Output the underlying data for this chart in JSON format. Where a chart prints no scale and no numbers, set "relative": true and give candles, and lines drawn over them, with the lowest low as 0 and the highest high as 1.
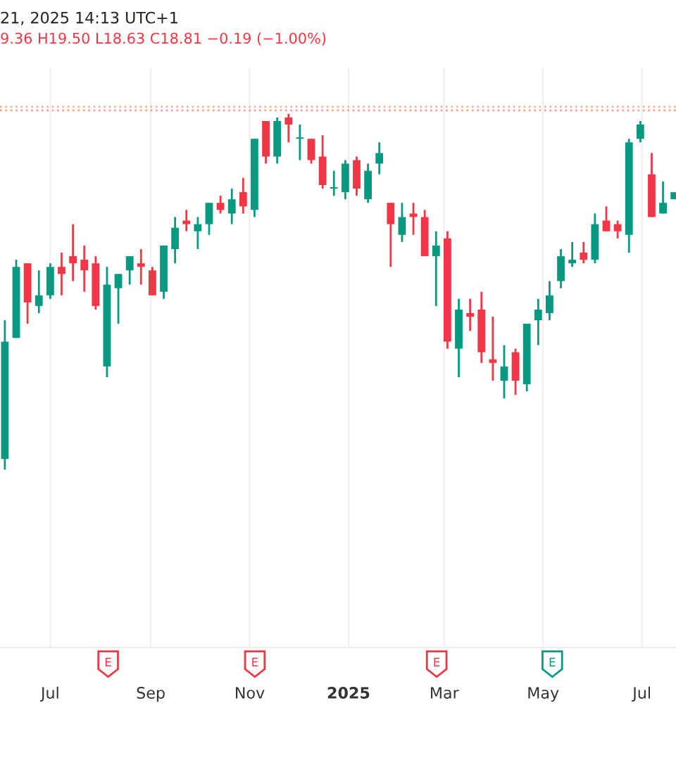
{
  "chart_data": {
    "type": "candlestick",
    "title": "21, 2025 14:13 UTC+1",
    "subtitle": "9.36 H19.50 L18.63 C18.81 −0.19 (−1.00%)",
    "relative": true,
    "grid": "x",
    "x": [
      "2024-06-03",
      "2024-06-10",
      "2024-06-17",
      "2024-06-24",
      "2024-07-01",
      "2024-07-08",
      "2024-07-15",
      "2024-07-22",
      "2024-07-29",
      "2024-08-05",
      "2024-08-12",
      "2024-08-19",
      "2024-08-26",
      "2024-09-02",
      "2024-09-09",
      "2024-09-16",
      "2024-09-23",
      "2024-09-30",
      "2024-10-07",
      "2024-10-14",
      "2024-10-21",
      "2024-10-28",
      "2024-11-04",
      "2024-11-11",
      "2024-11-18",
      "2024-11-25",
      "2024-12-02",
      "2024-12-09",
      "2024-12-16",
      "2024-12-23",
      "2024-12-30",
      "2025-01-06",
      "2025-01-13",
      "2025-01-20",
      "2025-01-27",
      "2025-02-03",
      "2025-02-10",
      "2025-02-17",
      "2025-02-24",
      "2025-03-03",
      "2025-03-10",
      "2025-03-17",
      "2025-03-24",
      "2025-03-31",
      "2025-04-07",
      "2025-04-14",
      "2025-04-21",
      "2025-04-28",
      "2025-05-05",
      "2025-05-12",
      "2025-05-19",
      "2025-05-26",
      "2025-06-02",
      "2025-06-09",
      "2025-06-16",
      "2025-06-23",
      "2025-06-30",
      "2025-07-07",
      "2025-07-14",
      "2025-07-21"
    ],
    "ohlc": [
      [
        0.03,
        0.42,
        0,
        0.36
      ],
      [
        0.37,
        0.59,
        0.37,
        0.57
      ],
      [
        0.58,
        0.58,
        0.41,
        0.47
      ],
      [
        0.46,
        0.56,
        0.44,
        0.49
      ],
      [
        0.49,
        0.58,
        0.48,
        0.57
      ],
      [
        0.57,
        0.61,
        0.49,
        0.55
      ],
      [
        0.6,
        0.69,
        0.53,
        0.58
      ],
      [
        0.59,
        0.63,
        0.5,
        0.56
      ],
      [
        0.58,
        0.6,
        0.45,
        0.46
      ],
      [
        0.29,
        0.57,
        0.26,
        0.52
      ],
      [
        0.51,
        0.55,
        0.41,
        0.55
      ],
      [
        0.56,
        0.6,
        0.52,
        0.6
      ],
      [
        0.58,
        0.62,
        0.52,
        0.57
      ],
      [
        0.56,
        0.57,
        0.49,
        0.49
      ],
      [
        0.5,
        0.63,
        0.48,
        0.63
      ],
      [
        0.62,
        0.71,
        0.58,
        0.68
      ],
      [
        0.7,
        0.73,
        0.67,
        0.69
      ],
      [
        0.67,
        0.71,
        0.62,
        0.69
      ],
      [
        0.69,
        0.75,
        0.66,
        0.75
      ],
      [
        0.75,
        0.77,
        0.72,
        0.73
      ],
      [
        0.72,
        0.79,
        0.69,
        0.76
      ],
      [
        0.78,
        0.82,
        0.72,
        0.74
      ],
      [
        0.73,
        0.93,
        0.71,
        0.93
      ],
      [
        0.98,
        0.98,
        0.86,
        0.88
      ],
      [
        0.88,
        0.99,
        0.86,
        0.98
      ],
      [
        0.99,
        1,
        0.92,
        0.97
      ],
      [
        0.93,
        0.97,
        0.87,
        0.93
      ],
      [
        0.93,
        0.93,
        0.86,
        0.87
      ],
      [
        0.88,
        0.94,
        0.79,
        0.8
      ],
      [
        0.79,
        0.84,
        0.77,
        0.79
      ],
      [
        0.78,
        0.87,
        0.76,
        0.86
      ],
      [
        0.87,
        0.88,
        0.77,
        0.79
      ],
      [
        0.76,
        0.86,
        0.75,
        0.84
      ],
      [
        0.86,
        0.92,
        0.83,
        0.89
      ],
      [
        0.75,
        0.75,
        0.57,
        0.69
      ],
      [
        0.66,
        0.75,
        0.64,
        0.71
      ],
      [
        0.72,
        0.75,
        0.66,
        0.71
      ],
      [
        0.71,
        0.73,
        0.6,
        0.6
      ],
      [
        0.6,
        0.67,
        0.46,
        0.63
      ],
      [
        0.65,
        0.67,
        0.34,
        0.36
      ],
      [
        0.34,
        0.48,
        0.26,
        0.45
      ],
      [
        0.44,
        0.48,
        0.39,
        0.43
      ],
      [
        0.45,
        0.5,
        0.3,
        0.33
      ],
      [
        0.31,
        0.43,
        0.25,
        0.3
      ],
      [
        0.25,
        0.35,
        0.2,
        0.29
      ],
      [
        0.33,
        0.34,
        0.21,
        0.25
      ],
      [
        0.24,
        0.41,
        0.22,
        0.41
      ],
      [
        0.42,
        0.48,
        0.35,
        0.45
      ],
      [
        0.44,
        0.53,
        0.42,
        0.49
      ],
      [
        0.53,
        0.62,
        0.51,
        0.6
      ],
      [
        0.58,
        0.64,
        0.57,
        0.59
      ],
      [
        0.61,
        0.64,
        0.58,
        0.59
      ],
      [
        0.59,
        0.72,
        0.58,
        0.69
      ],
      [
        0.7,
        0.74,
        0.67,
        0.67
      ],
      [
        0.69,
        0.7,
        0.65,
        0.67
      ],
      [
        0.66,
        0.93,
        0.61,
        0.92
      ],
      [
        0.93,
        0.98,
        0.92,
        0.97
      ],
      [
        0.83,
        0.89,
        0.71,
        0.71
      ],
      [
        0.72,
        0.81,
        0.72,
        0.75
      ],
      [
        0.76,
        0.78,
        0.76,
        0.78
      ]
    ],
    "colors": [
      "#089981",
      "#089981",
      "#f23645",
      "#089981",
      "#089981",
      "#f23645",
      "#f23645",
      "#f23645",
      "#f23645",
      "#089981",
      "#089981",
      "#089981",
      "#f23645",
      "#f23645",
      "#089981",
      "#089981",
      "#f23645",
      "#089981",
      "#089981",
      "#f23645",
      "#089981",
      "#f23645",
      "#089981",
      "#f23645",
      "#089981",
      "#f23645",
      "#089981",
      "#f23645",
      "#f23645",
      "#089981",
      "#089981",
      "#f23645",
      "#089981",
      "#089981",
      "#f23645",
      "#089981",
      "#f23645",
      "#f23645",
      "#089981",
      "#f23645",
      "#089981",
      "#f23645",
      "#f23645",
      "#f23645",
      "#089981",
      "#f23645",
      "#089981",
      "#089981",
      "#089981",
      "#089981",
      "#089981",
      "#f23645",
      "#089981",
      "#f23645",
      "#f23645",
      "#089981",
      "#089981",
      "#f23645",
      "#089981",
      "#089981"
    ],
    "xlim": [
      "2024-05-31",
      "2025-07-22"
    ],
    "xticks": [
      {
        "value": "2024-07-01",
        "label": "Jul"
      },
      {
        "value": "2024-09-01",
        "label": "Sep"
      },
      {
        "value": "2024-11-01",
        "label": "Nov"
      },
      {
        "value": "2025-01-01",
        "label": "2025"
      },
      {
        "value": "2025-03-01",
        "label": "Mar"
      },
      {
        "value": "2025-05-01",
        "label": "May"
      },
      {
        "value": "2025-07-01",
        "label": "Jul"
      }
    ],
    "ref_lines": [
      {
        "axis": "y",
        "value": 1.02,
        "color": "#f5b98c",
        "line_style": "dotted"
      },
      {
        "axis": "y",
        "value": 1.01,
        "color": "#eaa3a3",
        "line_style": "dotted"
      }
    ],
    "annotations": [
      "E",
      "E",
      "E",
      "E"
    ]
  }
}
